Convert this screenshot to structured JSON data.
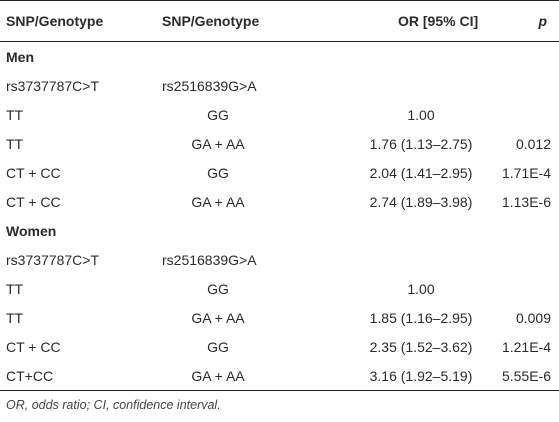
{
  "header": {
    "col1": "SNP/Genotype",
    "col2": "SNP/Genotype",
    "col3": "OR [95% CI]",
    "col4": "p"
  },
  "groups": [
    {
      "name": "Men",
      "snp1": "rs3737787C>T",
      "snp2": "rs2516839G>A",
      "rows": [
        {
          "g1": "TT",
          "g2": "GG",
          "or": "1.00",
          "p": ""
        },
        {
          "g1": "TT",
          "g2": "GA + AA",
          "or": "1.76 (1.13–2.75)",
          "p": "0.012"
        },
        {
          "g1": "CT + CC",
          "g2": "GG",
          "or": "2.04 (1.41–2.95)",
          "p": "1.71E-4"
        },
        {
          "g1": "CT + CC",
          "g2": "GA + AA",
          "or": "2.74 (1.89–3.98)",
          "p": "1.13E-6"
        }
      ]
    },
    {
      "name": "Women",
      "snp1": "rs3737787C>T",
      "snp2": "rs2516839G>A",
      "rows": [
        {
          "g1": "TT",
          "g2": "GG",
          "or": "1.00",
          "p": ""
        },
        {
          "g1": "TT",
          "g2": "GA + AA",
          "or": "1.85 (1.16–2.95)",
          "p": "0.009"
        },
        {
          "g1": "CT + CC",
          "g2": "GG",
          "or": "2.35 (1.52–3.62)",
          "p": "1.21E-4"
        },
        {
          "g1": "CT+CC",
          "g2": "GA + AA",
          "or": "3.16 (1.92–5.19)",
          "p": "5.55E-6"
        }
      ]
    }
  ],
  "footnote": "OR, odds ratio; CI, confidence interval."
}
